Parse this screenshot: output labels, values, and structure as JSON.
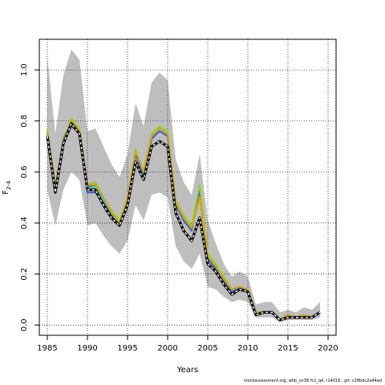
{
  "chart_data": {
    "type": "line",
    "xlabel": "Years",
    "ylabel": "F",
    "ylabel_sub": "2-4",
    "xlim": [
      1984,
      2021
    ],
    "ylim": [
      -0.04,
      1.12
    ],
    "xticks": [
      1985,
      1990,
      1995,
      2000,
      2005,
      2010,
      2015,
      2020
    ],
    "yticks": [
      0.0,
      0.2,
      0.4,
      0.6,
      0.8,
      1.0
    ],
    "ytick_labels": [
      "0.0",
      "0.2",
      "0.4",
      "0.6",
      "0.8",
      "1.0"
    ],
    "grid": true,
    "x": [
      1985,
      1986,
      1987,
      1988,
      1989,
      1990,
      1991,
      1992,
      1993,
      1994,
      1995,
      1996,
      1997,
      1998,
      1999,
      2000,
      2001,
      2002,
      2003,
      2004,
      2005,
      2006,
      2007,
      2008,
      2009,
      2010,
      2011,
      2012,
      2013,
      2014,
      2015,
      2016,
      2017,
      2018,
      2019
    ],
    "band": {
      "upper": [
        1.05,
        0.75,
        0.98,
        1.08,
        1.04,
        0.76,
        0.77,
        0.7,
        0.63,
        0.58,
        0.67,
        0.87,
        0.78,
        0.95,
        0.99,
        0.96,
        0.65,
        0.56,
        0.51,
        0.67,
        0.41,
        0.32,
        0.24,
        0.19,
        0.21,
        0.19,
        0.08,
        0.09,
        0.09,
        0.05,
        0.06,
        0.05,
        0.07,
        0.06,
        0.09
      ],
      "lower": [
        0.53,
        0.39,
        0.53,
        0.6,
        0.57,
        0.39,
        0.4,
        0.35,
        0.31,
        0.28,
        0.33,
        0.47,
        0.41,
        0.51,
        0.52,
        0.5,
        0.31,
        0.25,
        0.22,
        0.28,
        0.15,
        0.14,
        0.11,
        0.09,
        0.1,
        0.09,
        0.03,
        0.03,
        0.03,
        0.01,
        0.02,
        0.02,
        0.02,
        0.02,
        0.03
      ]
    },
    "series": [
      {
        "color": "#2e8b57",
        "dashed": false,
        "values": [
          0.76,
          0.53,
          0.73,
          0.8,
          0.76,
          0.54,
          0.55,
          0.49,
          0.44,
          0.4,
          0.49,
          0.68,
          0.59,
          0.74,
          0.77,
          0.75,
          0.48,
          0.42,
          0.38,
          0.54,
          0.27,
          0.23,
          0.18,
          0.14,
          0.15,
          0.14,
          0.05,
          0.05,
          0.05,
          0.02,
          0.04,
          0.03,
          0.04,
          0.03,
          0.05
        ]
      },
      {
        "color": "#22c3d6",
        "dashed": false,
        "values": [
          0.76,
          0.52,
          0.71,
          0.79,
          0.75,
          0.53,
          0.54,
          0.49,
          0.44,
          0.4,
          0.49,
          0.68,
          0.59,
          0.74,
          0.77,
          0.75,
          0.48,
          0.42,
          0.38,
          0.54,
          0.27,
          0.23,
          0.18,
          0.14,
          0.15,
          0.14,
          0.05,
          0.05,
          0.05,
          0.02,
          0.03,
          0.03,
          0.04,
          0.03,
          0.05
        ]
      },
      {
        "color": "#3a5fcd",
        "dashed": false,
        "values": [
          0.75,
          0.52,
          0.71,
          0.78,
          0.75,
          0.52,
          0.52,
          0.48,
          0.43,
          0.39,
          0.48,
          0.67,
          0.58,
          0.73,
          0.76,
          0.74,
          0.47,
          0.41,
          0.37,
          0.53,
          0.26,
          0.22,
          0.17,
          0.13,
          0.15,
          0.13,
          0.05,
          0.05,
          0.05,
          0.02,
          0.03,
          0.03,
          0.03,
          0.03,
          0.05
        ]
      },
      {
        "color": "#9acd32",
        "dashed": false,
        "values": [
          0.77,
          0.54,
          0.72,
          0.81,
          0.77,
          0.55,
          0.56,
          0.5,
          0.45,
          0.41,
          0.5,
          0.69,
          0.6,
          0.75,
          0.78,
          0.76,
          0.49,
          0.43,
          0.39,
          0.55,
          0.28,
          0.24,
          0.19,
          0.14,
          0.15,
          0.14,
          0.05,
          0.05,
          0.05,
          0.02,
          0.04,
          0.03,
          0.04,
          0.03,
          0.05
        ]
      },
      {
        "color": "#d4a017",
        "dashed": false,
        "values": [
          0.76,
          0.54,
          0.72,
          0.8,
          0.76,
          0.55,
          0.55,
          0.5,
          0.44,
          0.4,
          0.5,
          0.68,
          0.6,
          0.74,
          0.77,
          0.75,
          0.48,
          0.42,
          0.38,
          0.5,
          0.27,
          0.23,
          0.18,
          0.14,
          0.15,
          0.14,
          0.05,
          0.05,
          0.05,
          0.02,
          0.04,
          0.03,
          0.04,
          0.03,
          0.05
        ]
      },
      {
        "color": "#000000",
        "dashed": false,
        "values": [
          0.74,
          0.52,
          0.71,
          0.79,
          0.75,
          0.53,
          0.53,
          0.47,
          0.42,
          0.39,
          0.47,
          0.64,
          0.57,
          0.7,
          0.72,
          0.7,
          0.44,
          0.37,
          0.33,
          0.42,
          0.24,
          0.21,
          0.16,
          0.12,
          0.14,
          0.13,
          0.04,
          0.05,
          0.05,
          0.02,
          0.03,
          0.03,
          0.03,
          0.03,
          0.05
        ]
      },
      {
        "color": "#ffffff",
        "dashed": true,
        "values": [
          0.74,
          0.52,
          0.71,
          0.79,
          0.75,
          0.53,
          0.53,
          0.47,
          0.42,
          0.39,
          0.47,
          0.64,
          0.57,
          0.7,
          0.72,
          0.7,
          0.44,
          0.37,
          0.33,
          0.42,
          0.24,
          0.21,
          0.16,
          0.12,
          0.14,
          0.13,
          0.04,
          0.05,
          0.05,
          0.02,
          0.03,
          0.03,
          0.03,
          0.03,
          0.05
        ]
      }
    ]
  },
  "footer": "stockassessment.org,  whb_ov38  fc1_q4,  r14016 ,  git:  c28bdc2a44ad"
}
